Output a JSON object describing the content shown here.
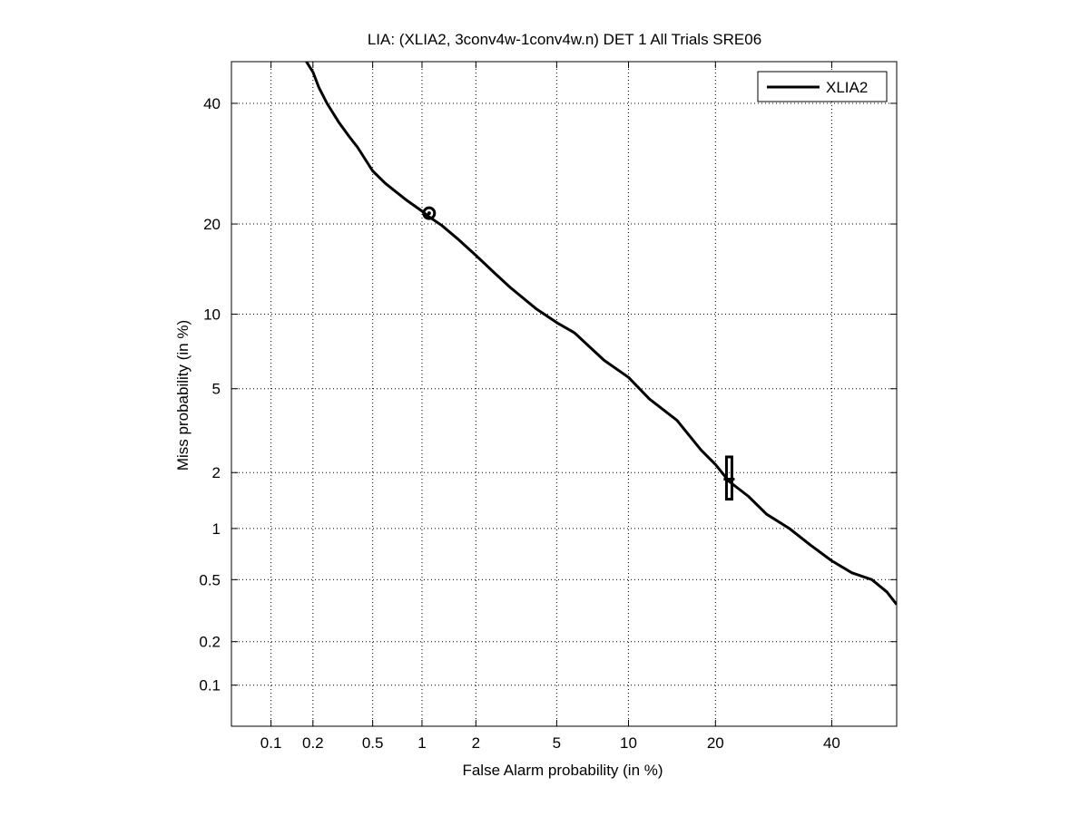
{
  "chart_data": {
    "type": "line",
    "title": "LIA: (XLIA2, 3conv4w-1conv4w.n) DET 1 All Trials SRE06",
    "xlabel": "False Alarm probability (in %)",
    "ylabel": "Miss probability (in %)",
    "scale": "normal-deviate (probit)",
    "grid": true,
    "legend_position": "top-right",
    "xlim": [
      0.05,
      53
    ],
    "ylim": [
      0.05,
      48
    ],
    "xticks": [
      0.1,
      0.2,
      0.5,
      1,
      2,
      5,
      10,
      20,
      40
    ],
    "xtick_labels": [
      "0.1",
      "0.2",
      "0.5",
      "1",
      "2",
      "5",
      "10",
      "20",
      "40"
    ],
    "yticks": [
      0.1,
      0.2,
      0.5,
      1,
      2,
      5,
      10,
      20,
      40
    ],
    "ytick_labels": [
      "0.1",
      "0.2",
      "0.5",
      "1",
      "2",
      "5",
      "10",
      "20",
      "40"
    ],
    "series": [
      {
        "name": "XLIA2",
        "color": "#000000",
        "x": [
          0.18,
          0.2,
          0.22,
          0.25,
          0.3,
          0.35,
          0.4,
          0.5,
          0.6,
          0.8,
          1.0,
          1.1,
          1.3,
          1.6,
          2.0,
          2.5,
          3.0,
          4.0,
          5.0,
          6.0,
          8.0,
          10.0,
          12.0,
          15.0,
          18.0,
          20.0,
          22.0,
          25.0,
          28.0,
          32.0,
          36.0,
          40.0,
          44.0,
          48.0,
          51.0,
          53.0
        ],
        "y": [
          48.0,
          46.0,
          43.0,
          40.0,
          36.5,
          34.0,
          32.0,
          28.0,
          26.0,
          23.5,
          21.8,
          21.0,
          19.8,
          18.0,
          16.0,
          14.0,
          12.5,
          10.5,
          9.3,
          8.5,
          6.6,
          5.6,
          4.5,
          3.6,
          2.6,
          2.2,
          1.8,
          1.5,
          1.2,
          1.0,
          0.8,
          0.65,
          0.55,
          0.5,
          0.42,
          0.35
        ]
      }
    ],
    "markers": [
      {
        "shape": "circle",
        "x": 1.1,
        "y": 21.5
      },
      {
        "shape": "box-errorbar",
        "x": 22.0,
        "y": 1.85,
        "y_low": 1.45,
        "y_high": 2.4
      }
    ]
  }
}
